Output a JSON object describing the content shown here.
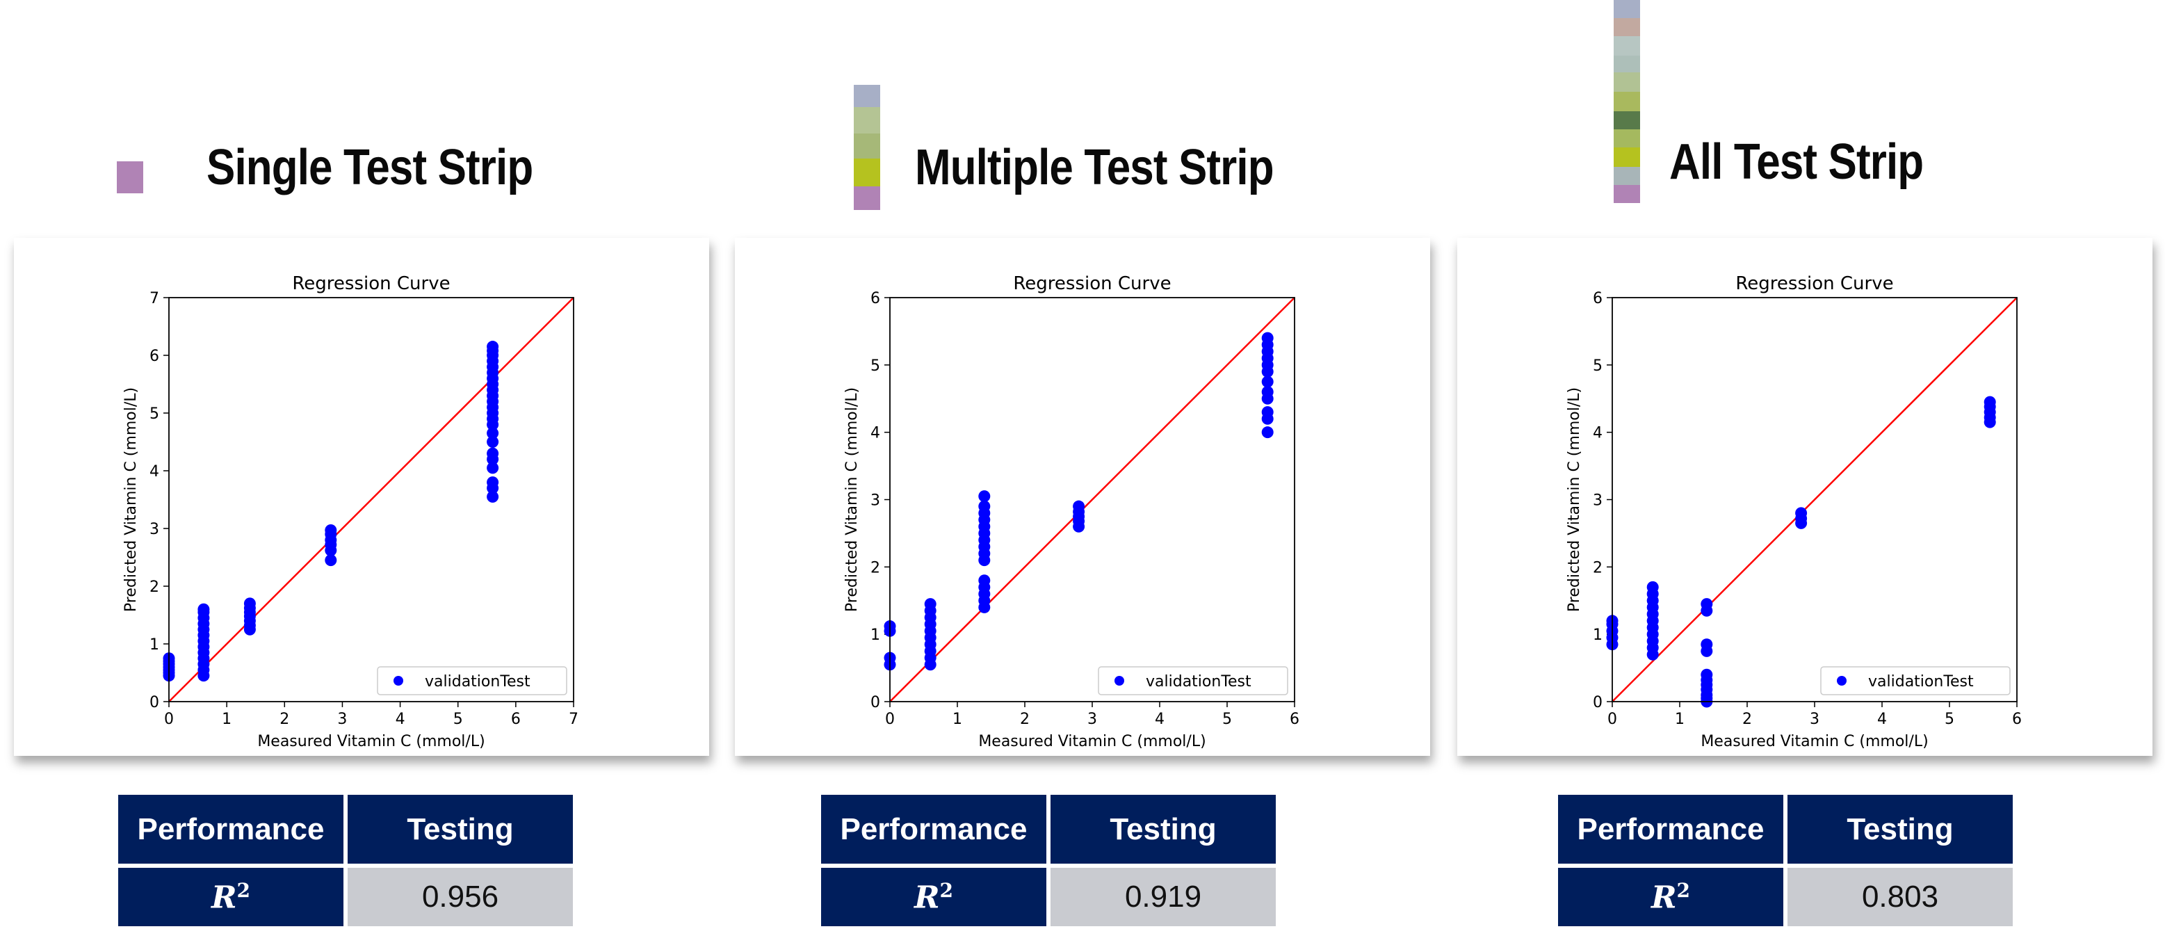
{
  "panels": [
    {
      "title": "Single Test Strip",
      "strip_colors": [
        "#b083b5"
      ],
      "chart_data": {
        "type": "scatter",
        "title": "Regression Curve",
        "xlabel": "Measured Vitamin C (mmol/L)",
        "ylabel": "Predicted Vitamin C (mmol/L)",
        "xlim": [
          0,
          7
        ],
        "ylim": [
          0,
          7
        ],
        "xticks": [
          0,
          1,
          2,
          3,
          4,
          5,
          6,
          7
        ],
        "yticks": [
          0,
          1,
          2,
          3,
          4,
          5,
          6,
          7
        ],
        "reference_line": [
          [
            0,
            0
          ],
          [
            7,
            7
          ]
        ],
        "legend": "validationTest",
        "legend_position": "lower-right",
        "series": [
          {
            "name": "validationTest",
            "color": "#0000ff",
            "points": [
              [
                0,
                0.45
              ],
              [
                0,
                0.5
              ],
              [
                0,
                0.55
              ],
              [
                0,
                0.6
              ],
              [
                0,
                0.65
              ],
              [
                0,
                0.7
              ],
              [
                0,
                0.75
              ],
              [
                0.6,
                0.45
              ],
              [
                0.6,
                0.55
              ],
              [
                0.6,
                0.65
              ],
              [
                0.6,
                0.75
              ],
              [
                0.6,
                0.85
              ],
              [
                0.6,
                0.95
              ],
              [
                0.6,
                1.05
              ],
              [
                0.6,
                1.15
              ],
              [
                0.6,
                1.25
              ],
              [
                0.6,
                1.35
              ],
              [
                0.6,
                1.45
              ],
              [
                0.6,
                1.55
              ],
              [
                0.6,
                1.6
              ],
              [
                1.4,
                1.25
              ],
              [
                1.4,
                1.32
              ],
              [
                1.4,
                1.4
              ],
              [
                1.4,
                1.48
              ],
              [
                1.4,
                1.55
              ],
              [
                1.4,
                1.62
              ],
              [
                1.4,
                1.7
              ],
              [
                2.8,
                2.45
              ],
              [
                2.8,
                2.62
              ],
              [
                2.8,
                2.72
              ],
              [
                2.8,
                2.8
              ],
              [
                2.8,
                2.9
              ],
              [
                2.8,
                2.97
              ],
              [
                5.6,
                3.55
              ],
              [
                5.6,
                3.7
              ],
              [
                5.6,
                3.8
              ],
              [
                5.6,
                4.05
              ],
              [
                5.6,
                4.2
              ],
              [
                5.6,
                4.3
              ],
              [
                5.6,
                4.5
              ],
              [
                5.6,
                4.65
              ],
              [
                5.6,
                4.8
              ],
              [
                5.6,
                4.9
              ],
              [
                5.6,
                5.0
              ],
              [
                5.6,
                5.1
              ],
              [
                5.6,
                5.2
              ],
              [
                5.6,
                5.3
              ],
              [
                5.6,
                5.4
              ],
              [
                5.6,
                5.5
              ],
              [
                5.6,
                5.6
              ],
              [
                5.6,
                5.7
              ],
              [
                5.6,
                5.8
              ],
              [
                5.6,
                5.9
              ],
              [
                5.6,
                6.0
              ],
              [
                5.6,
                6.08
              ],
              [
                5.6,
                6.15
              ]
            ]
          }
        ]
      },
      "table": {
        "col1": "Performance",
        "col2": "Testing",
        "metric": "R",
        "metric_sup": "2",
        "value": "0.956"
      }
    },
    {
      "title": "Multiple Test Strip",
      "strip_colors": [
        "#a7afc6",
        "#b4c494",
        "#a6b878",
        "#b5c21f",
        "#b083b5"
      ],
      "chart_data": {
        "type": "scatter",
        "title": "Regression Curve",
        "xlabel": "Measured Vitamin C (mmol/L)",
        "ylabel": "Predicted Vitamin C (mmol/L)",
        "xlim": [
          0,
          6
        ],
        "ylim": [
          0,
          6
        ],
        "xticks": [
          0,
          1,
          2,
          3,
          4,
          5,
          6
        ],
        "yticks": [
          0,
          1,
          2,
          3,
          4,
          5,
          6
        ],
        "reference_line": [
          [
            0,
            0
          ],
          [
            6,
            6
          ]
        ],
        "legend": "validationTest",
        "legend_position": "lower-right",
        "series": [
          {
            "name": "validationTest",
            "color": "#0000ff",
            "points": [
              [
                0,
                0.55
              ],
              [
                0,
                0.65
              ],
              [
                0,
                1.05
              ],
              [
                0,
                1.12
              ],
              [
                0.6,
                0.55
              ],
              [
                0.6,
                0.65
              ],
              [
                0.6,
                0.75
              ],
              [
                0.6,
                0.85
              ],
              [
                0.6,
                0.95
              ],
              [
                0.6,
                1.05
              ],
              [
                0.6,
                1.15
              ],
              [
                0.6,
                1.25
              ],
              [
                0.6,
                1.35
              ],
              [
                0.6,
                1.45
              ],
              [
                1.4,
                1.4
              ],
              [
                1.4,
                1.5
              ],
              [
                1.4,
                1.6
              ],
              [
                1.4,
                1.7
              ],
              [
                1.4,
                1.8
              ],
              [
                1.4,
                2.1
              ],
              [
                1.4,
                2.2
              ],
              [
                1.4,
                2.3
              ],
              [
                1.4,
                2.4
              ],
              [
                1.4,
                2.5
              ],
              [
                1.4,
                2.6
              ],
              [
                1.4,
                2.7
              ],
              [
                1.4,
                2.8
              ],
              [
                1.4,
                2.9
              ],
              [
                1.4,
                3.05
              ],
              [
                2.8,
                2.6
              ],
              [
                2.8,
                2.68
              ],
              [
                2.8,
                2.75
              ],
              [
                2.8,
                2.82
              ],
              [
                2.8,
                2.9
              ],
              [
                5.6,
                4.0
              ],
              [
                5.6,
                4.2
              ],
              [
                5.6,
                4.3
              ],
              [
                5.6,
                4.5
              ],
              [
                5.6,
                4.6
              ],
              [
                5.6,
                4.75
              ],
              [
                5.6,
                4.9
              ],
              [
                5.6,
                5.0
              ],
              [
                5.6,
                5.1
              ],
              [
                5.6,
                5.2
              ],
              [
                5.6,
                5.3
              ],
              [
                5.6,
                5.4
              ]
            ]
          }
        ]
      },
      "table": {
        "col1": "Performance",
        "col2": "Testing",
        "metric": "R",
        "metric_sup": "2",
        "value": "0.919"
      }
    },
    {
      "title": "All Test Strip",
      "strip_colors": [
        "#a7afc6",
        "#c2a9a0",
        "#b7c6c2",
        "#adbfb9",
        "#b1c294",
        "#a9b95e",
        "#587a4a",
        "#a5b95f",
        "#b5c21f",
        "#a8b5b8",
        "#b083b5"
      ],
      "chart_data": {
        "type": "scatter",
        "title": "Regression Curve",
        "xlabel": "Measured Vitamin C (mmol/L)",
        "ylabel": "Predicted Vitamin C (mmol/L)",
        "xlim": [
          0,
          6
        ],
        "ylim": [
          0,
          6
        ],
        "xticks": [
          0,
          1,
          2,
          3,
          4,
          5,
          6
        ],
        "yticks": [
          0,
          1,
          2,
          3,
          4,
          5,
          6
        ],
        "reference_line": [
          [
            0,
            0
          ],
          [
            6,
            6
          ]
        ],
        "legend": "validationTest",
        "legend_position": "lower-right",
        "series": [
          {
            "name": "validationTest",
            "color": "#0000ff",
            "points": [
              [
                0,
                0.85
              ],
              [
                0,
                0.95
              ],
              [
                0,
                1.05
              ],
              [
                0,
                1.15
              ],
              [
                0,
                1.2
              ],
              [
                0.6,
                0.7
              ],
              [
                0.6,
                0.8
              ],
              [
                0.6,
                0.9
              ],
              [
                0.6,
                1.0
              ],
              [
                0.6,
                1.1
              ],
              [
                0.6,
                1.2
              ],
              [
                0.6,
                1.3
              ],
              [
                0.6,
                1.4
              ],
              [
                0.6,
                1.5
              ],
              [
                0.6,
                1.6
              ],
              [
                0.6,
                1.7
              ],
              [
                1.4,
                0.0
              ],
              [
                1.4,
                0.05
              ],
              [
                1.4,
                0.1
              ],
              [
                1.4,
                0.18
              ],
              [
                1.4,
                0.25
              ],
              [
                1.4,
                0.32
              ],
              [
                1.4,
                0.4
              ],
              [
                1.4,
                0.75
              ],
              [
                1.4,
                0.85
              ],
              [
                1.4,
                1.35
              ],
              [
                1.4,
                1.45
              ],
              [
                2.8,
                2.65
              ],
              [
                2.8,
                2.72
              ],
              [
                2.8,
                2.8
              ],
              [
                5.6,
                4.15
              ],
              [
                5.6,
                4.22
              ],
              [
                5.6,
                4.3
              ],
              [
                5.6,
                4.38
              ],
              [
                5.6,
                4.45
              ]
            ]
          }
        ]
      },
      "table": {
        "col1": "Performance",
        "col2": "Testing",
        "metric": "R",
        "metric_sup": "2",
        "value": "0.803"
      }
    }
  ]
}
